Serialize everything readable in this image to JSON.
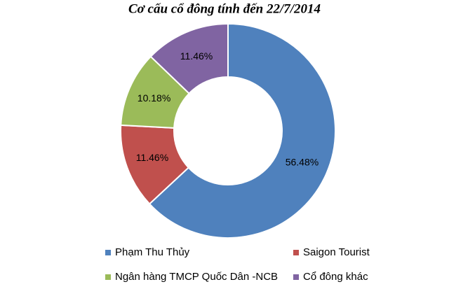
{
  "chart_data": {
    "type": "donut",
    "title": "Cơ cấu cổ đông tính đến 22/7/2014",
    "categories": [
      "Phạm Thu Thủy",
      "Saigon Tourist",
      "Ngân hàng TMCP Quốc Dân -NCB",
      "Cổ đông khác"
    ],
    "values": [
      56.48,
      11.46,
      10.18,
      11.46
    ],
    "value_labels": [
      "56.48%",
      "11.46%",
      "10.18%",
      "11.46%"
    ],
    "colors": [
      "#4f81bd",
      "#c0504d",
      "#9bbb59",
      "#8064a2"
    ]
  }
}
